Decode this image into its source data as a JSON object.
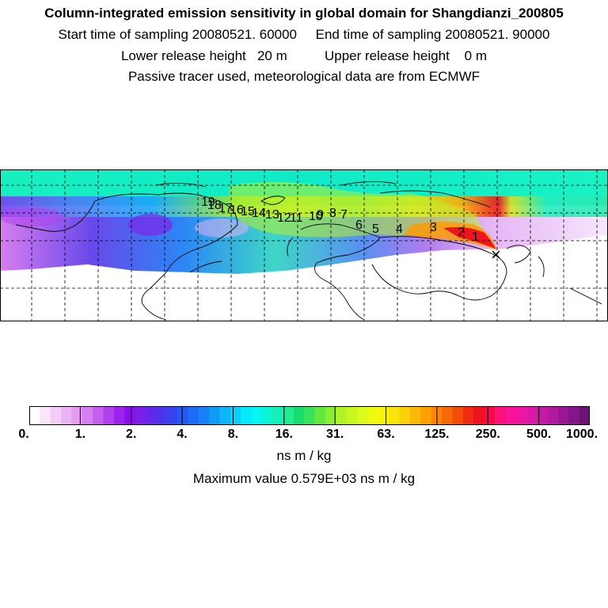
{
  "header": {
    "title": "Column-integrated emission sensitivity in global domain for Shangdianzi_200805",
    "line2": "Start time of sampling 20080521. 60000     End time of sampling 20080521. 90000",
    "line3": "Lower release height   20 m          Upper release height    0 m",
    "line4": "Passive tracer used, meteorological data are from ECMWF"
  },
  "map": {
    "receptor_symbol": "×",
    "trajectory_labels": [
      "1",
      "2",
      "3",
      "4",
      "5",
      "6",
      "7",
      "8",
      "9",
      "10",
      "11",
      "12",
      "13",
      "14",
      "15",
      "16",
      "17",
      "18",
      "19"
    ]
  },
  "colorbar": {
    "tick_labels": [
      "0.",
      "1.",
      "2.",
      "4.",
      "8.",
      "16.",
      "31.",
      "63.",
      "125.",
      "250.",
      "500.",
      "1000."
    ],
    "colors": [
      "#ffffff",
      "#f9e6fb",
      "#f2cdf7",
      "#ecb4f3",
      "#e59bef",
      "#d77ef0",
      "#c45ff0",
      "#b141ee",
      "#9d24ed",
      "#8a10ea",
      "#7a20e8",
      "#6426e8",
      "#4c34ec",
      "#3444ef",
      "#2858f2",
      "#1c6cf5",
      "#1682f7",
      "#119bf9",
      "#0db6fa",
      "#0ad0fb",
      "#07e8fc",
      "#05f6f2",
      "#0cf4d4",
      "#16f0b4",
      "#20ec92",
      "#19de6e",
      "#38e25a",
      "#64e840",
      "#8cee30",
      "#b0f428",
      "#c6f820",
      "#dafc18",
      "#ecfc10",
      "#f8f40c",
      "#fce40a",
      "#fcd008",
      "#fcb806",
      "#fca004",
      "#fa8604",
      "#f86a04",
      "#f44c0a",
      "#f02c12",
      "#ee141e",
      "#f80a48",
      "#fc1278",
      "#f81494",
      "#ec16a2",
      "#dc18a8",
      "#c61aa6",
      "#b01aa0",
      "#9a1896",
      "#841688",
      "#6c1476"
    ],
    "units": "ns m / kg",
    "max_value_text": "Maximum value  0.579E+03 ns m / kg"
  }
}
